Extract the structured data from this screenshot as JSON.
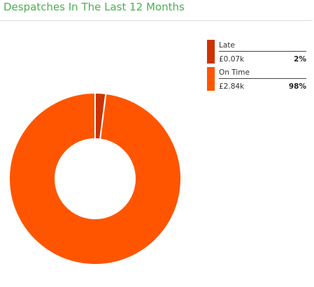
{
  "widget": {
    "title": "Despatches In The Last 12 Months"
  },
  "chart_data": {
    "type": "pie",
    "variant": "donut",
    "title": "Despatches In The Last 12 Months",
    "legend_position": "top-right",
    "slices": [
      {
        "name": "Late",
        "value_label": "£0.07k",
        "value": 0.07,
        "percent": 2,
        "percent_label": "2%",
        "color": "#cc3300"
      },
      {
        "name": "On Time",
        "value_label": "£2.84k",
        "value": 2.84,
        "percent": 98,
        "percent_label": "98%",
        "color": "#ff5500"
      }
    ]
  },
  "colors": {
    "title": "#4caf50",
    "slice_border": "#ffffff"
  }
}
